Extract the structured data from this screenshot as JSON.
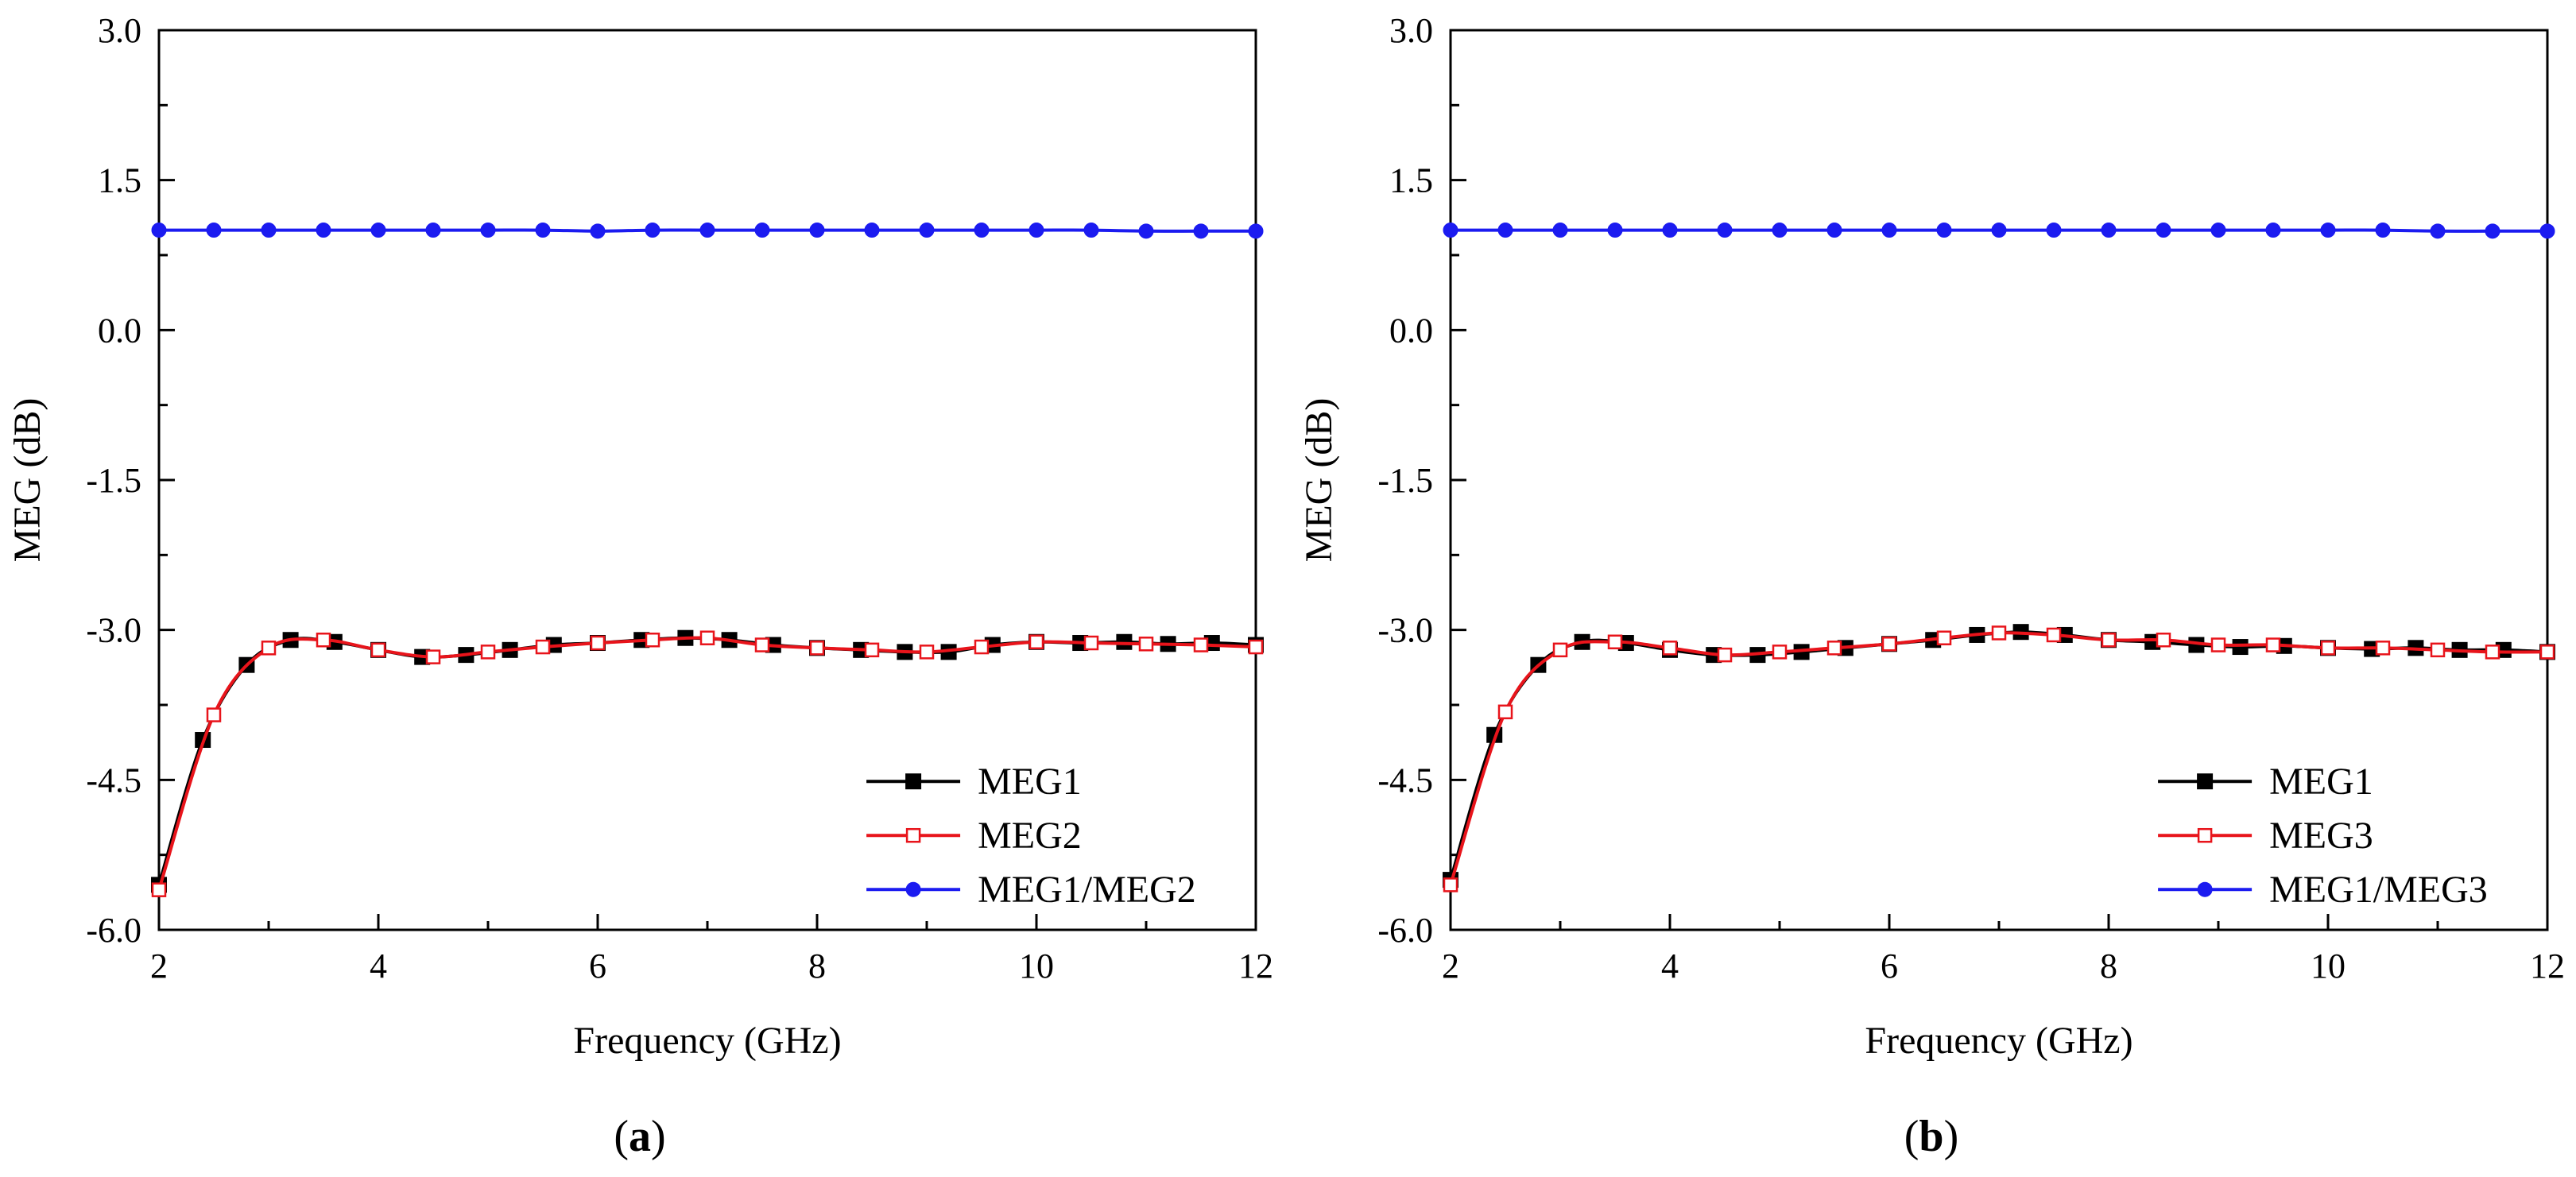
{
  "chart_data": [
    {
      "type": "line",
      "panel_label": "(a)",
      "xlabel": "Frequency (GHz)",
      "ylabel": "MEG (dB)",
      "xlim": [
        2,
        12
      ],
      "ylim": [
        -6.0,
        3.0
      ],
      "xticks": [
        "2",
        "4",
        "6",
        "8",
        "10",
        "12"
      ],
      "yticks": [
        "3.0",
        "1.5",
        "0.0",
        "-1.5",
        "-3.0",
        "-4.5",
        "-6.0"
      ],
      "legend_position": "bottom-right",
      "series": [
        {
          "name": "MEG1",
          "color": "#000000",
          "marker": "filled-square",
          "x": [
            2.0,
            2.4,
            2.8,
            3.2,
            3.6,
            4.0,
            4.4,
            4.8,
            5.2,
            5.6,
            6.0,
            6.4,
            6.8,
            7.2,
            7.6,
            8.0,
            8.4,
            8.8,
            9.2,
            9.6,
            10.0,
            10.4,
            10.8,
            11.2,
            11.6,
            12.0
          ],
          "y": [
            -5.55,
            -4.1,
            -3.35,
            -3.1,
            -3.12,
            -3.2,
            -3.27,
            -3.25,
            -3.2,
            -3.15,
            -3.13,
            -3.1,
            -3.08,
            -3.1,
            -3.15,
            -3.18,
            -3.2,
            -3.22,
            -3.22,
            -3.15,
            -3.12,
            -3.13,
            -3.12,
            -3.14,
            -3.13,
            -3.15
          ]
        },
        {
          "name": "MEG2",
          "color": "#e8141b",
          "marker": "open-square",
          "x": [
            2.0,
            2.5,
            3.0,
            3.5,
            4.0,
            4.5,
            5.0,
            5.5,
            6.0,
            6.5,
            7.0,
            7.5,
            8.0,
            8.5,
            9.0,
            9.5,
            10.0,
            10.5,
            11.0,
            11.5,
            12.0
          ],
          "y": [
            -5.6,
            -3.85,
            -3.18,
            -3.1,
            -3.2,
            -3.27,
            -3.22,
            -3.17,
            -3.13,
            -3.1,
            -3.08,
            -3.15,
            -3.18,
            -3.2,
            -3.22,
            -3.17,
            -3.12,
            -3.13,
            -3.14,
            -3.15,
            -3.17
          ]
        },
        {
          "name": "MEG1/MEG2",
          "color": "#1b1bf0",
          "marker": "filled-circle",
          "x": [
            2.0,
            2.5,
            3.0,
            3.5,
            4.0,
            4.5,
            5.0,
            5.5,
            6.0,
            6.5,
            7.0,
            7.5,
            8.0,
            8.5,
            9.0,
            9.5,
            10.0,
            10.5,
            11.0,
            11.5,
            12.0
          ],
          "y": [
            1.0,
            1.0,
            1.0,
            1.0,
            1.0,
            1.0,
            1.0,
            1.0,
            0.99,
            1.0,
            1.0,
            1.0,
            1.0,
            1.0,
            1.0,
            1.0,
            1.0,
            1.0,
            0.99,
            0.99,
            0.99
          ]
        }
      ]
    },
    {
      "type": "line",
      "panel_label": "(b)",
      "xlabel": "Frequency (GHz)",
      "ylabel": "MEG (dB)",
      "xlim": [
        2,
        12
      ],
      "ylim": [
        -6.0,
        3.0
      ],
      "xticks": [
        "2",
        "4",
        "6",
        "8",
        "10",
        "12"
      ],
      "yticks": [
        "3.0",
        "1.5",
        "0.0",
        "-1.5",
        "-3.0",
        "-4.5",
        "-6.0"
      ],
      "legend_position": "bottom-right",
      "series": [
        {
          "name": "MEG1",
          "color": "#000000",
          "marker": "filled-square",
          "x": [
            2.0,
            2.4,
            2.8,
            3.2,
            3.6,
            4.0,
            4.4,
            4.8,
            5.2,
            5.6,
            6.0,
            6.4,
            6.8,
            7.2,
            7.6,
            8.0,
            8.4,
            8.8,
            9.2,
            9.6,
            10.0,
            10.4,
            10.8,
            11.2,
            11.6,
            12.0
          ],
          "y": [
            -5.5,
            -4.05,
            -3.35,
            -3.12,
            -3.13,
            -3.2,
            -3.25,
            -3.25,
            -3.22,
            -3.18,
            -3.14,
            -3.1,
            -3.05,
            -3.02,
            -3.05,
            -3.1,
            -3.12,
            -3.15,
            -3.17,
            -3.16,
            -3.18,
            -3.19,
            -3.18,
            -3.2,
            -3.2,
            -3.22
          ]
        },
        {
          "name": "MEG3",
          "color": "#e8141b",
          "marker": "open-square",
          "x": [
            2.0,
            2.5,
            3.0,
            3.5,
            4.0,
            4.5,
            5.0,
            5.5,
            6.0,
            6.5,
            7.0,
            7.5,
            8.0,
            8.5,
            9.0,
            9.5,
            10.0,
            10.5,
            11.0,
            11.5,
            12.0
          ],
          "y": [
            -5.55,
            -3.82,
            -3.2,
            -3.12,
            -3.18,
            -3.25,
            -3.22,
            -3.18,
            -3.14,
            -3.08,
            -3.03,
            -3.05,
            -3.1,
            -3.1,
            -3.15,
            -3.15,
            -3.18,
            -3.18,
            -3.2,
            -3.22,
            -3.22
          ]
        },
        {
          "name": "MEG1/MEG3",
          "color": "#1b1bf0",
          "marker": "filled-circle",
          "x": [
            2.0,
            2.5,
            3.0,
            3.5,
            4.0,
            4.5,
            5.0,
            5.5,
            6.0,
            6.5,
            7.0,
            7.5,
            8.0,
            8.5,
            9.0,
            9.5,
            10.0,
            10.5,
            11.0,
            11.5,
            12.0
          ],
          "y": [
            1.0,
            1.0,
            1.0,
            1.0,
            1.0,
            1.0,
            1.0,
            1.0,
            1.0,
            1.0,
            1.0,
            1.0,
            1.0,
            1.0,
            1.0,
            1.0,
            1.0,
            1.0,
            0.99,
            0.99,
            0.99
          ]
        }
      ]
    }
  ]
}
